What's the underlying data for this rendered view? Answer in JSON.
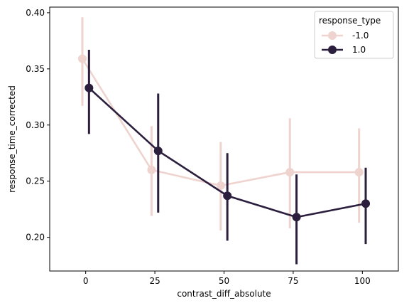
{
  "chart_data": {
    "type": "line",
    "xlabel": "contrast_diff_absolute",
    "ylabel": "response_time_corrected",
    "x": [
      0,
      25,
      50,
      75,
      100
    ],
    "x_ticks": [
      "0",
      "25",
      "50",
      "75",
      "100"
    ],
    "y_ticks": [
      "0.20",
      "0.25",
      "0.30",
      "0.35",
      "0.40"
    ],
    "xlim": [
      -13,
      113
    ],
    "ylim": [
      0.17,
      0.405
    ],
    "grid": false,
    "legend": {
      "title": "response_type",
      "placement": "top-right"
    },
    "series": [
      {
        "name": "-1.0",
        "color": "#efd3cf",
        "values": [
          0.359,
          0.26,
          0.246,
          0.258,
          0.258
        ],
        "ci_low": [
          0.317,
          0.219,
          0.206,
          0.208,
          0.213
        ],
        "ci_high": [
          0.396,
          0.299,
          0.285,
          0.306,
          0.297
        ],
        "x_offset": -1.2
      },
      {
        "name": "1.0",
        "color": "#2b1f3d",
        "values": [
          0.333,
          0.277,
          0.237,
          0.218,
          0.23
        ],
        "ci_low": [
          0.292,
          0.222,
          0.197,
          0.176,
          0.194
        ],
        "ci_high": [
          0.367,
          0.328,
          0.275,
          0.256,
          0.262
        ],
        "x_offset": 1.2
      }
    ]
  }
}
